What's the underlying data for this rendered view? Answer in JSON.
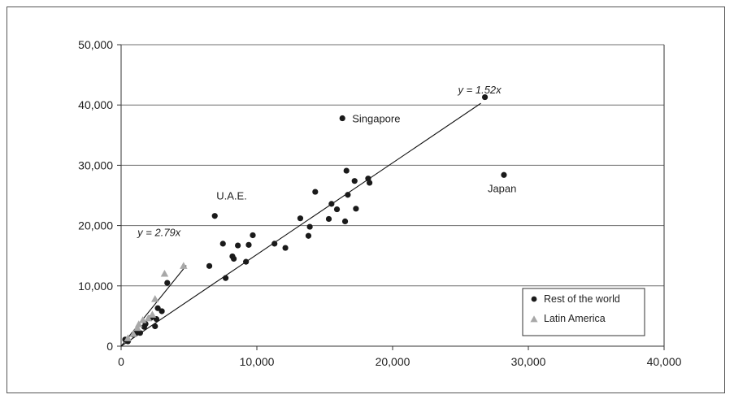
{
  "chart_data": {
    "type": "scatter",
    "xlim": [
      0,
      40000
    ],
    "ylim": [
      0,
      50000
    ],
    "x_ticks": [
      "0",
      "10,000",
      "20,000",
      "30,000",
      "40,000"
    ],
    "y_ticks": [
      "0",
      "10,000",
      "20,000",
      "30,000",
      "40,000",
      "50,000"
    ],
    "grid": "horizontal",
    "legend_position": "bottom-right",
    "series": [
      {
        "name": "Rest of the world",
        "marker": "circle",
        "color": "#1a1a1a",
        "points": [
          [
            300,
            1100
          ],
          [
            500,
            800
          ],
          [
            900,
            1900
          ],
          [
            1100,
            2300
          ],
          [
            1400,
            2200
          ],
          [
            1700,
            3200
          ],
          [
            1800,
            3700
          ],
          [
            2200,
            4700
          ],
          [
            2500,
            3300
          ],
          [
            2600,
            4500
          ],
          [
            2700,
            6300
          ],
          [
            3000,
            5800
          ],
          [
            3400,
            10500
          ],
          [
            6500,
            13300
          ],
          [
            6900,
            21600
          ],
          [
            7500,
            17000
          ],
          [
            7700,
            11300
          ],
          [
            8200,
            14900
          ],
          [
            8300,
            14500
          ],
          [
            8600,
            16700
          ],
          [
            9200,
            14000
          ],
          [
            9400,
            16800
          ],
          [
            9700,
            18400
          ],
          [
            11300,
            17000
          ],
          [
            12100,
            16300
          ],
          [
            13200,
            21200
          ],
          [
            13800,
            18300
          ],
          [
            13900,
            19800
          ],
          [
            14300,
            25600
          ],
          [
            15300,
            21100
          ],
          [
            15500,
            23600
          ],
          [
            15900,
            22700
          ],
          [
            16300,
            37800
          ],
          [
            16500,
            20700
          ],
          [
            16600,
            29100
          ],
          [
            16700,
            25100
          ],
          [
            17200,
            27400
          ],
          [
            17300,
            22800
          ],
          [
            18200,
            27800
          ],
          [
            18300,
            27100
          ],
          [
            26800,
            41300
          ],
          [
            28200,
            28400
          ]
        ]
      },
      {
        "name": "Latin America",
        "marker": "triangle",
        "color": "#a8a8a8",
        "points": [
          [
            500,
            1300
          ],
          [
            900,
            2000
          ],
          [
            1200,
            3000
          ],
          [
            1300,
            3600
          ],
          [
            1600,
            4300
          ],
          [
            2000,
            4600
          ],
          [
            2300,
            5200
          ],
          [
            2500,
            7800
          ],
          [
            3200,
            12000
          ],
          [
            4600,
            13300
          ]
        ]
      }
    ],
    "trendlines": [
      {
        "label": "y = 1.52x",
        "slope": 1.52,
        "x_range": [
          0,
          26500
        ]
      },
      {
        "label": "y = 2.79x",
        "slope": 2.79,
        "x_range": [
          0,
          4800
        ]
      }
    ],
    "annotations": [
      {
        "text": "Singapore",
        "x": 16300,
        "y": 37800
      },
      {
        "text": "U.A.E.",
        "x": 6900,
        "y": 21600
      },
      {
        "text": "Japan",
        "x": 28200,
        "y": 28400
      }
    ]
  }
}
